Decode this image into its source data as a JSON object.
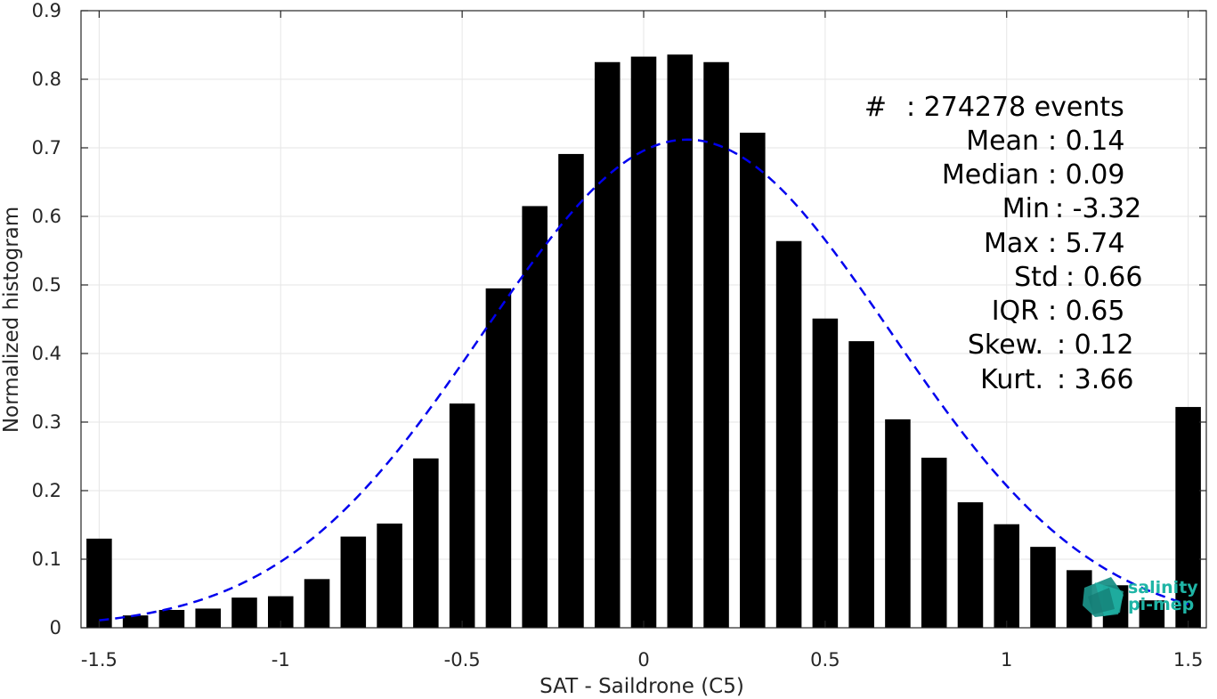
{
  "chart_data": {
    "type": "bar",
    "xlabel": "SAT - Saildrone (C5)",
    "ylabel": "Normalized histogram",
    "xlim": [
      -1.55,
      1.55
    ],
    "ylim": [
      0,
      0.9
    ],
    "grid": true,
    "xticks": [
      -1.5,
      -1,
      -0.5,
      0,
      0.5,
      1,
      1.5
    ],
    "xtick_labels": [
      "-1.5",
      "-1",
      "-0.5",
      "0",
      "0.5",
      "1",
      "1.5"
    ],
    "yticks": [
      0,
      0.1,
      0.2,
      0.3,
      0.4,
      0.5,
      0.6,
      0.7,
      0.8,
      0.9
    ],
    "ytick_labels": [
      "0",
      "0.1",
      "0.2",
      "0.3",
      "0.4",
      "0.5",
      "0.6",
      "0.7",
      "0.8",
      "0.9"
    ],
    "bar_color": "#000000",
    "bins": [
      -1.5,
      -1.4,
      -1.3,
      -1.2,
      -1.1,
      -1.0,
      -0.9,
      -0.8,
      -0.7,
      -0.6,
      -0.5,
      -0.4,
      -0.3,
      -0.2,
      -0.1,
      0.0,
      0.1,
      0.2,
      0.3,
      0.4,
      0.5,
      0.6,
      0.7,
      0.8,
      0.9,
      1.0,
      1.1,
      1.2,
      1.3,
      1.4,
      1.5
    ],
    "values": [
      0.13,
      0.018,
      0.026,
      0.028,
      0.044,
      0.046,
      0.071,
      0.133,
      0.152,
      0.247,
      0.327,
      0.495,
      0.615,
      0.691,
      0.825,
      0.833,
      0.836,
      0.825,
      0.722,
      0.564,
      0.451,
      0.418,
      0.304,
      0.248,
      0.183,
      0.151,
      0.118,
      0.084,
      0.062,
      0.04,
      0.322
    ],
    "fit_curve": {
      "type": "gaussian",
      "mean": 0.12,
      "std": 0.56,
      "peak": 0.712,
      "x_range": [
        -1.5,
        1.5
      ],
      "color": "#0000ee",
      "style": "dashed"
    },
    "stats": [
      {
        "label": "#",
        "value": ": 274278 events"
      },
      {
        "label": "Mean",
        "value": ": 0.14"
      },
      {
        "label": "Median",
        "value": ": 0.09"
      },
      {
        "label": "Min",
        "value": ": -3.32"
      },
      {
        "label": "Max",
        "value": ": 5.74"
      },
      {
        "label": "Std",
        "value": ": 0.66"
      },
      {
        "label": "IQR",
        "value": ": 0.65"
      },
      {
        "label": "Skew.",
        "value": ": 0.12"
      },
      {
        "label": "Kurt.",
        "value": ": 3.66"
      }
    ]
  },
  "logo": {
    "line1": "salinity",
    "line2": "pi-mep",
    "color": "#1fb5a6"
  }
}
